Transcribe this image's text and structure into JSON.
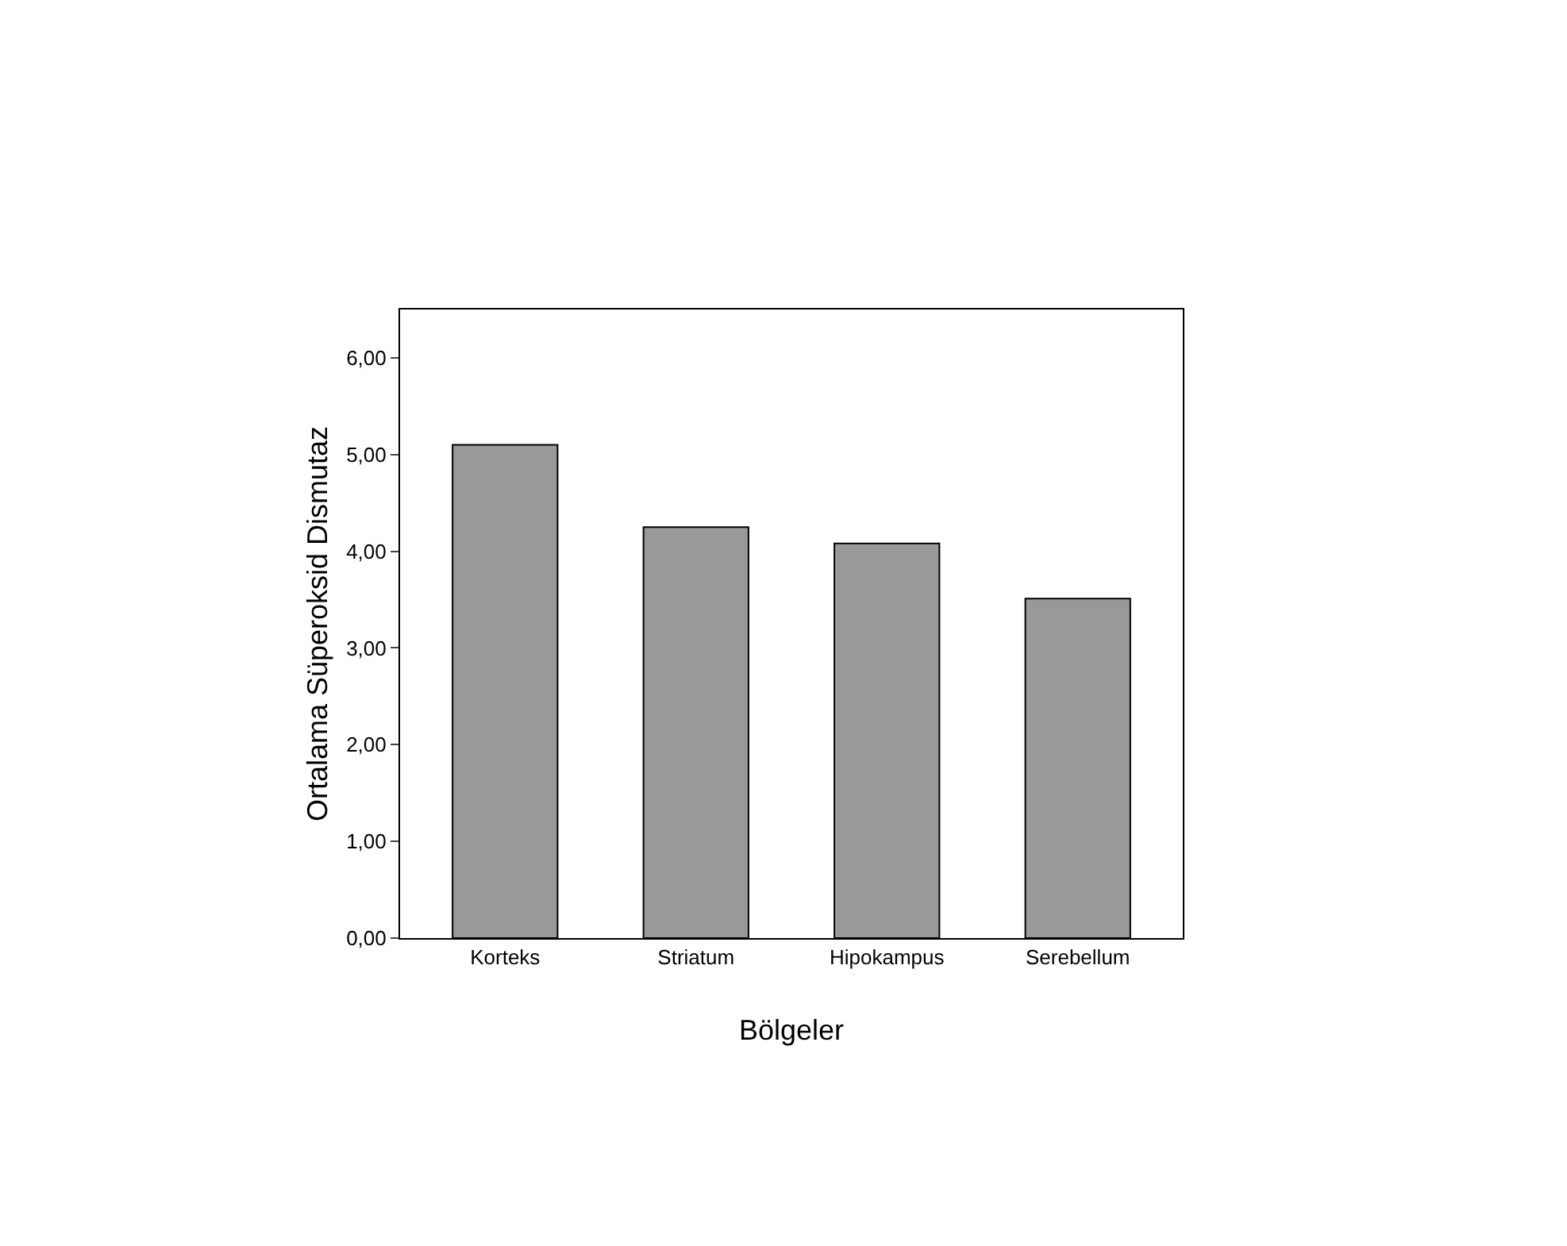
{
  "chart_data": {
    "type": "bar",
    "xlabel": "Bölgeler",
    "ylabel": "Ortalama Süperoksid Dismutaz",
    "categories": [
      "Korteks",
      "Striatum",
      "Hipokampus",
      "Serebellum"
    ],
    "values": [
      5.1,
      4.25,
      4.08,
      3.51
    ],
    "color": "#999999",
    "ylim": [
      0,
      6.5
    ],
    "yticks": [
      {
        "value": 0,
        "label": "0,00"
      },
      {
        "value": 1,
        "label": "1,00"
      },
      {
        "value": 2,
        "label": "2,00"
      },
      {
        "value": 3,
        "label": "3,00"
      },
      {
        "value": 4,
        "label": "4,00"
      },
      {
        "value": 5,
        "label": "5,00"
      },
      {
        "value": 6,
        "label": "6,00"
      }
    ],
    "grid": false,
    "legend": false
  }
}
